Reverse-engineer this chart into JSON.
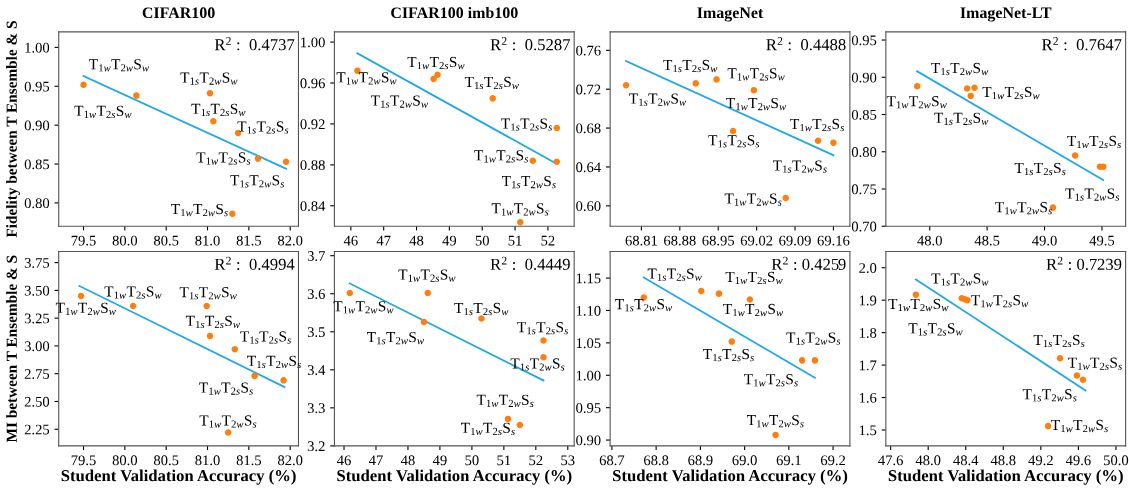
{
  "chart_data": [
    {
      "type": "scatter",
      "title": "CIFAR100",
      "ylabel": "Fidelity between T Ensemble & S",
      "grid": false,
      "legend": false,
      "xlim": [
        79.2,
        82.1
      ],
      "ylim": [
        0.77,
        1.02
      ],
      "xticks": [
        {
          "value": 79.5,
          "label": "79.5"
        },
        {
          "value": 80.0,
          "label": "80.0"
        },
        {
          "value": 80.5,
          "label": "80.5"
        },
        {
          "value": 81.0,
          "label": "81.0"
        },
        {
          "value": 81.5,
          "label": "81.5"
        },
        {
          "value": 82.0,
          "label": "82.0"
        }
      ],
      "yticks": [
        {
          "value": 0.8,
          "label": "0.80"
        },
        {
          "value": 0.85,
          "label": "0.85"
        },
        {
          "value": 0.9,
          "label": "0.90"
        },
        {
          "value": 0.95,
          "label": "0.95"
        },
        {
          "value": 1.0,
          "label": "1.00"
        }
      ],
      "series": [
        {
          "marker": "circle",
          "color": "#ff7f0e",
          "x": [
            79.5,
            80.14,
            81.03,
            81.07,
            81.37,
            81.61,
            81.95,
            81.3
          ],
          "values": [
            0.952,
            0.938,
            0.941,
            0.905,
            0.89,
            0.857,
            0.853,
            0.786
          ]
        },
        {
          "type": "line",
          "marker": "none",
          "color": "#1fa8e8",
          "x": [
            79.5,
            81.95
          ],
          "values": [
            0.963,
            0.844
          ]
        }
      ],
      "annotations": [
        "R$^{2}$ :  0.4737",
        {
          "text": "T$_{1w}$T$_{2w}$S$_{w}$",
          "x": 79.5,
          "y": 0.952
        },
        {
          "text": "T$_{1w}$T$_{2s}$S$_{w}$",
          "x": 80.14,
          "y": 0.938
        },
        {
          "text": "T$_{1s}$T$_{2w}$S$_{w}$",
          "x": 81.03,
          "y": 0.941
        },
        {
          "text": "T$_{1s}$T$_{2s}$S$_{w}$",
          "x": 81.07,
          "y": 0.905
        },
        {
          "text": "T$_{1s}$T$_{2s}$S$_{s}$",
          "x": 81.37,
          "y": 0.89
        },
        {
          "text": "T$_{1w}$T$_{2s}$S$_{s}$",
          "x": 81.61,
          "y": 0.857
        },
        {
          "text": "T$_{1s}$T$_{2w}$S$_{s}$",
          "x": 81.95,
          "y": 0.853
        },
        {
          "text": "T$_{1w}$T$_{2w}$S$_{s}$",
          "x": 81.3,
          "y": 0.786
        }
      ]
    },
    {
      "type": "scatter",
      "title": "CIFAR100 imb100",
      "grid": false,
      "legend": false,
      "xlim": [
        45.5,
        52.8
      ],
      "ylim": [
        0.82,
        1.01
      ],
      "xticks": [
        46,
        47,
        48,
        49,
        50,
        51,
        52
      ],
      "yticks": [
        {
          "value": 0.84,
          "label": "0.84"
        },
        {
          "value": 0.88,
          "label": "0.88"
        },
        {
          "value": 0.92,
          "label": "0.92"
        },
        {
          "value": 0.96,
          "label": "0.96"
        },
        {
          "value": 1.0,
          "label": "1.00"
        }
      ],
      "series": [
        {
          "marker": "circle",
          "color": "#ff7f0e",
          "x": [
            46.2,
            48.52,
            48.64,
            50.32,
            52.27,
            51.54,
            52.27,
            51.16
          ],
          "values": [
            0.972,
            0.964,
            0.968,
            0.945,
            0.916,
            0.884,
            0.883,
            0.824
          ]
        },
        {
          "type": "line",
          "marker": "none",
          "color": "#1fa8e8",
          "x": [
            46.2,
            52.27
          ],
          "values": [
            0.989,
            0.881
          ]
        }
      ],
      "annotations": [
        "R$^{2}$ :  0.5287",
        {
          "text": "T$_{1w}$T$_{2w}$S$_{w}$",
          "x": 46.2,
          "y": 0.972
        },
        {
          "text": "T$_{1s}$T$_{2w}$S$_{w}$",
          "x": 48.52,
          "y": 0.964
        },
        {
          "text": "T$_{1w}$T$_{2s}$S$_{w}$",
          "x": 48.64,
          "y": 0.968
        },
        {
          "text": "T$_{1s}$T$_{2s}$S$_{w}$",
          "x": 50.32,
          "y": 0.945
        },
        {
          "text": "T$_{1s}$T$_{2s}$S$_{s}$",
          "x": 52.27,
          "y": 0.916
        },
        {
          "text": "T$_{1w}$T$_{2s}$S$_{s}$",
          "x": 51.54,
          "y": 0.884
        },
        {
          "text": "T$_{1s}$T$_{2w}$S$_{s}$",
          "x": 52.27,
          "y": 0.883
        },
        {
          "text": "T$_{1w}$T$_{2w}$S$_{s}$",
          "x": 51.16,
          "y": 0.824
        }
      ]
    },
    {
      "type": "scatter",
      "title": "ImageNet",
      "grid": false,
      "legend": false,
      "xlim": [
        68.753,
        69.19
      ],
      "ylim": [
        0.579,
        0.779
      ],
      "xticks": [
        68.81,
        68.88,
        68.95,
        69.02,
        69.09,
        69.16
      ],
      "yticks": [
        {
          "value": 0.6,
          "label": "0.60"
        },
        {
          "value": 0.64,
          "label": "0.64"
        },
        {
          "value": 0.68,
          "label": "0.68"
        },
        {
          "value": 0.72,
          "label": "0.72"
        },
        {
          "value": 0.76,
          "label": "0.76"
        }
      ],
      "series": [
        {
          "marker": "circle",
          "color": "#ff7f0e",
          "x": [
            68.782,
            68.909,
            68.947,
            68.977,
            69.015,
            69.132,
            69.16,
            69.073
          ],
          "values": [
            0.724,
            0.726,
            0.73,
            0.677,
            0.719,
            0.667,
            0.665,
            0.608
          ]
        },
        {
          "type": "line",
          "marker": "none",
          "color": "#1fa8e8",
          "x": [
            68.782,
            69.16
          ],
          "values": [
            0.749,
            0.652
          ]
        }
      ],
      "annotations": [
        "R$^{2}$ :  0.4488",
        {
          "text": "T$_{1s}$T$_{2w}$S$_{w}$",
          "x": 68.782,
          "y": 0.724
        },
        {
          "text": "T$_{1s}$T$_{2s}$S$_{w}$",
          "x": 68.909,
          "y": 0.726
        },
        {
          "text": "T$_{1w}$T$_{2s}$S$_{w}$",
          "x": 68.947,
          "y": 0.73
        },
        {
          "text": "T$_{1s}$T$_{2s}$S$_{s}$",
          "x": 68.977,
          "y": 0.677
        },
        {
          "text": "T$_{1w}$T$_{2w}$S$_{w}$",
          "x": 69.015,
          "y": 0.719
        },
        {
          "text": "T$_{1w}$T$_{2s}$S$_{s}$",
          "x": 69.132,
          "y": 0.667
        },
        {
          "text": "T$_{1s}$T$_{2w}$S$_{s}$",
          "x": 69.16,
          "y": 0.665
        },
        {
          "text": "T$_{1w}$T$_{2w}$S$_{s}$",
          "x": 69.073,
          "y": 0.608
        }
      ]
    },
    {
      "type": "scatter",
      "title": "ImageNet-LT",
      "grid": false,
      "legend": false,
      "xlim": [
        47.618,
        49.706
      ],
      "ylim": [
        0.7,
        0.961
      ],
      "xticks": [
        {
          "value": 48.0,
          "label": "48.0"
        },
        {
          "value": 48.5,
          "label": "48.5"
        },
        {
          "value": 49.0,
          "label": "49.0"
        },
        {
          "value": 49.5,
          "label": "49.5"
        }
      ],
      "yticks": [
        {
          "value": 0.7,
          "label": "0.70"
        },
        {
          "value": 0.75,
          "label": "0.75"
        },
        {
          "value": 0.8,
          "label": "0.80"
        },
        {
          "value": 0.85,
          "label": "0.85"
        },
        {
          "value": 0.9,
          "label": "0.90"
        },
        {
          "value": 0.95,
          "label": "0.95"
        }
      ],
      "series": [
        {
          "marker": "circle",
          "color": "#ff7f0e",
          "x": [
            47.891,
            48.326,
            48.39,
            48.357,
            49.266,
            49.483,
            49.511,
            49.073
          ],
          "values": [
            0.888,
            0.885,
            0.886,
            0.875,
            0.795,
            0.78,
            0.78,
            0.725
          ]
        },
        {
          "type": "line",
          "marker": "none",
          "color": "#1fa8e8",
          "x": [
            47.891,
            49.511
          ],
          "values": [
            0.908,
            0.762
          ]
        }
      ],
      "annotations": [
        "R$^{2}$ :  0.7647",
        {
          "text": "T$_{1w}$T$_{2w}$S$_{w}$",
          "x": 47.891,
          "y": 0.888
        },
        {
          "text": "T$_{1s}$T$_{2w}$S$_{w}$",
          "x": 48.326,
          "y": 0.885
        },
        {
          "text": "T$_{1w}$T$_{2s}$S$_{w}$",
          "x": 48.39,
          "y": 0.886
        },
        {
          "text": "T$_{1s}$T$_{2s}$S$_{w}$",
          "x": 48.357,
          "y": 0.875
        },
        {
          "text": "T$_{1s}$T$_{2s}$S$_{s}$",
          "x": 49.266,
          "y": 0.795
        },
        {
          "text": "T$_{1w}$T$_{2s}$S$_{s}$",
          "x": 49.483,
          "y": 0.78
        },
        {
          "text": "T$_{1s}$T$_{2w}$S$_{s}$",
          "x": 49.511,
          "y": 0.78
        },
        {
          "text": "T$_{1w}$T$_{2w}$S$_{s}$",
          "x": 49.073,
          "y": 0.725
        }
      ]
    },
    {
      "type": "scatter",
      "ylabel": "MI between T Ensemble & S",
      "xlabel": "Student Validation Accuracy (%)",
      "grid": false,
      "legend": false,
      "xlim": [
        79.2,
        82.1
      ],
      "ylim": [
        2.1,
        3.85
      ],
      "xticks": [
        {
          "value": 79.5,
          "label": "79.5"
        },
        {
          "value": 80.0,
          "label": "80.0"
        },
        {
          "value": 80.5,
          "label": "80.5"
        },
        {
          "value": 81.0,
          "label": "81.0"
        },
        {
          "value": 81.5,
          "label": "81.5"
        },
        {
          "value": 82.0,
          "label": "82.0"
        }
      ],
      "yticks": [
        2.25,
        {
          "value": 2.5,
          "label": "2.50"
        },
        2.75,
        {
          "value": 3.0,
          "label": "3.00"
        },
        3.25,
        {
          "value": 3.5,
          "label": "3.50"
        },
        3.75
      ],
      "series": [
        {
          "marker": "circle",
          "color": "#ff7f0e",
          "x": [
            79.47,
            80.1,
            80.99,
            81.03,
            81.33,
            81.57,
            81.92,
            81.25
          ],
          "values": [
            3.45,
            3.36,
            3.36,
            3.09,
            2.97,
            2.73,
            2.69,
            2.22
          ]
        },
        {
          "type": "line",
          "marker": "none",
          "color": "#1fa8e8",
          "x": [
            79.45,
            81.93
          ],
          "values": [
            3.54,
            2.63
          ]
        }
      ],
      "annotations": [
        "R$^{2}$ :  0.4994",
        {
          "text": "T$_{1w}$T$_{2w}$S$_{w}$",
          "x": 79.47,
          "y": 3.45
        },
        {
          "text": "T$_{1w}$T$_{2s}$S$_{w}$",
          "x": 80.1,
          "y": 3.36
        },
        {
          "text": "T$_{1s}$T$_{2w}$S$_{w}$",
          "x": 80.99,
          "y": 3.36
        },
        {
          "text": "T$_{1s}$T$_{2s}$S$_{w}$",
          "x": 81.03,
          "y": 3.09
        },
        {
          "text": "T$_{1s}$T$_{2s}$S$_{s}$",
          "x": 81.33,
          "y": 2.97
        },
        {
          "text": "T$_{1w}$T$_{2s}$S$_{s}$",
          "x": 81.57,
          "y": 2.73
        },
        {
          "text": "T$_{1s}$T$_{2w}$S$_{s}$",
          "x": 81.92,
          "y": 2.69
        },
        {
          "text": "T$_{1w}$T$_{2w}$S$_{s}$",
          "x": 81.25,
          "y": 2.22
        }
      ]
    },
    {
      "type": "scatter",
      "xlabel": "Student Validation Accuracy (%)",
      "grid": false,
      "xlim": [
        45.7,
        53.2
      ],
      "ylim": [
        3.2,
        3.711
      ],
      "xticks": [
        46,
        47,
        48,
        49,
        50,
        51,
        52,
        53
      ],
      "yticks": [
        3.2,
        3.3,
        3.4,
        3.5,
        3.6,
        3.7
      ],
      "series": [
        {
          "marker": "circle",
          "color": "#ff7f0e",
          "x": [
            46.18,
            48.62,
            48.5,
            50.3,
            52.24,
            52.24,
            51.13,
            51.5
          ],
          "values": [
            3.602,
            3.602,
            3.526,
            3.535,
            3.477,
            3.433,
            3.271,
            3.255
          ]
        },
        {
          "type": "line",
          "marker": "none",
          "color": "#1fa8e8",
          "x": [
            46.18,
            52.24
          ],
          "values": [
            3.627,
            3.372
          ]
        }
      ],
      "annotations": [
        "R$^{2}$ :  0.4449",
        {
          "text": "T$_{1w}$T$_{2w}$S$_{w}$",
          "x": 46.18,
          "y": 3.602
        },
        {
          "text": "T$_{1w}$T$_{2s}$S$_{w}$",
          "x": 48.62,
          "y": 3.602
        },
        {
          "text": "T$_{1s}$T$_{2w}$S$_{w}$",
          "x": 48.5,
          "y": 3.526
        },
        {
          "text": "T$_{1s}$T$_{2s}$S$_{w}$",
          "x": 50.3,
          "y": 3.535
        },
        {
          "text": "T$_{1s}$T$_{2s}$S$_{s}$",
          "x": 52.24,
          "y": 3.477
        },
        {
          "text": "T$_{1s}$T$_{2w}$S$_{s}$",
          "x": 52.24,
          "y": 3.433
        },
        {
          "text": "T$_{1w}$T$_{2w}$S$_{s}$",
          "x": 51.13,
          "y": 3.271
        },
        {
          "text": "T$_{1w}$T$_{2s}$S$_{s}$",
          "x": 51.5,
          "y": 3.255
        }
      ]
    },
    {
      "type": "scatter",
      "xlabel": "Student Validation Accuracy (%)",
      "grid": false,
      "xlim": [
        68.696,
        69.238
      ],
      "ylim": [
        0.891,
        1.191
      ],
      "xticks": [
        68.7,
        68.8,
        68.9,
        {
          "value": 69.0,
          "label": "69.0"
        },
        69.1,
        69.2
      ],
      "yticks": [
        {
          "value": 0.9,
          "label": "0.90"
        },
        0.95,
        {
          "value": 1.0,
          "label": "1.00"
        },
        1.05,
        {
          "value": 1.1,
          "label": "1.10"
        },
        1.15
      ],
      "series": [
        {
          "marker": "circle",
          "color": "#ff7f0e",
          "x": [
            68.772,
            68.902,
            68.942,
            69.012,
            68.971,
            69.13,
            69.159,
            69.07
          ],
          "values": [
            1.12,
            1.13,
            1.126,
            1.117,
            1.052,
            1.023,
            1.023,
            0.908
          ]
        },
        {
          "type": "line",
          "marker": "none",
          "color": "#1fa8e8",
          "x": [
            68.772,
            69.159
          ],
          "values": [
            1.151,
            0.996
          ]
        }
      ],
      "annotations": [
        "R$^{2}$ : 0.4259",
        {
          "text": "T$_{1s}$T$_{2w}$S$_{w}$",
          "x": 68.772,
          "y": 1.12
        },
        {
          "text": "T$_{1s}$T$_{2s}$S$_{w}$",
          "x": 68.902,
          "y": 1.13
        },
        {
          "text": "T$_{1w}$T$_{2s}$S$_{w}$",
          "x": 68.942,
          "y": 1.126
        },
        {
          "text": "T$_{1w}$T$_{2w}$S$_{w}$",
          "x": 69.012,
          "y": 1.117
        },
        {
          "text": "T$_{1s}$T$_{2s}$S$_{s}$",
          "x": 68.971,
          "y": 1.052
        },
        {
          "text": "T$_{1w}$T$_{2s}$S$_{s}$",
          "x": 69.13,
          "y": 1.023
        },
        {
          "text": "T$_{1s}$T$_{2w}$S$_{s}$",
          "x": 69.159,
          "y": 1.023
        },
        {
          "text": "T$_{1w}$T$_{2w}$S$_{s}$",
          "x": 69.07,
          "y": 0.908
        }
      ]
    },
    {
      "type": "scatter",
      "xlabel": "Student Validation Accuracy (%)",
      "grid": false,
      "xlim": [
        47.549,
        50.103
      ],
      "ylim": [
        1.451,
        2.05
      ],
      "xticks": [
        47.6,
        {
          "value": 48.0,
          "label": "48.0"
        },
        48.4,
        48.8,
        49.2,
        49.6,
        {
          "value": 50.0,
          "label": "50.0"
        }
      ],
      "yticks": [
        1.5,
        1.6,
        1.7,
        1.8,
        1.9,
        {
          "value": 2.0,
          "label": "2.0"
        }
      ],
      "series": [
        {
          "marker": "circle",
          "color": "#ff7f0e",
          "x": [
            47.869,
            48.357,
            48.391,
            48.418,
            49.404,
            49.584,
            49.649,
            49.277
          ],
          "values": [
            1.917,
            1.906,
            1.903,
            1.9,
            1.721,
            1.668,
            1.655,
            1.512
          ]
        },
        {
          "type": "line",
          "marker": "none",
          "color": "#1fa8e8",
          "x": [
            47.869,
            49.676
          ],
          "values": [
            1.964,
            1.622
          ]
        }
      ],
      "annotations": [
        "R$^{2}$ : 0.7239",
        {
          "text": "T$_{1w}$T$_{2w}$S$_{w}$",
          "x": 47.869,
          "y": 1.917
        },
        {
          "text": "T$_{1s}$T$_{2w}$S$_{w}$",
          "x": 48.357,
          "y": 1.906
        },
        {
          "text": "T$_{1s}$T$_{2s}$S$_{w}$",
          "x": 48.391,
          "y": 1.903
        },
        {
          "text": "T$_{1w}$T$_{2s}$S$_{w}$",
          "x": 48.418,
          "y": 1.9
        },
        {
          "text": "T$_{1s}$T$_{2s}$S$_{s}$",
          "x": 49.404,
          "y": 1.721
        },
        {
          "text": "T$_{1w}$T$_{2s}$S$_{s}$",
          "x": 49.584,
          "y": 1.668
        },
        {
          "text": "T$_{1s}$T$_{2w}$S$_{s}$",
          "x": 49.649,
          "y": 1.655
        },
        {
          "text": "T$_{1w}$T$_{2w}$S$_{s}$",
          "x": 49.277,
          "y": 1.512
        }
      ]
    }
  ]
}
